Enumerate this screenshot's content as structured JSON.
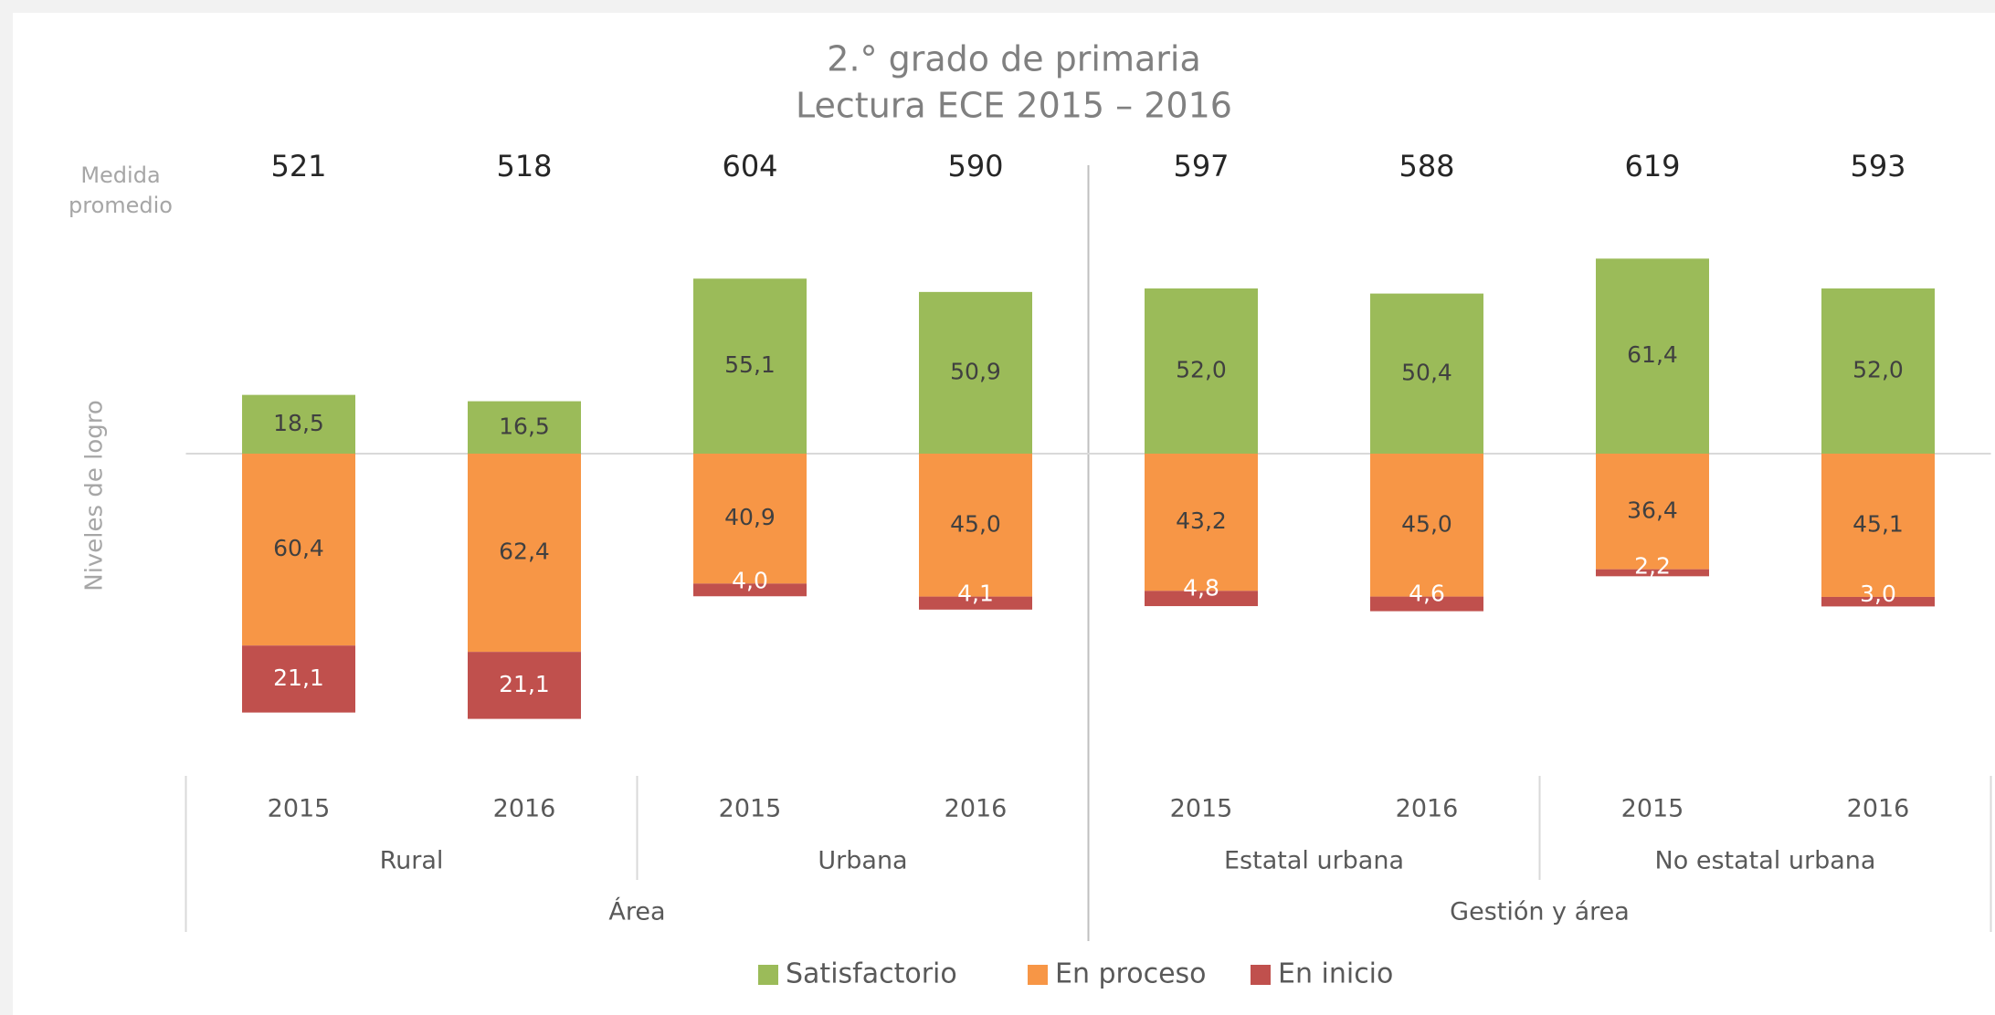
{
  "chart_data": {
    "type": "diverging_stacked_bar",
    "title": "2.° grado de primaria",
    "subtitle": "Lectura ECE 2015 – 2016",
    "mean_label": "Medida promedio",
    "y_label": "Niveles de logro",
    "groups": [
      {
        "name": "Área",
        "subgroups": [
          {
            "name": "Rural",
            "categories": [
              "2015",
              "2016"
            ]
          },
          {
            "name": "Urbana",
            "categories": [
              "2015",
              "2016"
            ]
          }
        ]
      },
      {
        "name": "Gestión y área",
        "subgroups": [
          {
            "name": "Estatal urbana",
            "categories": [
              "2015",
              "2016"
            ]
          },
          {
            "name": "No estatal urbana",
            "categories": [
              "2015",
              "2016"
            ]
          }
        ]
      }
    ],
    "means": [
      521,
      518,
      604,
      590,
      597,
      588,
      619,
      593
    ],
    "series": [
      {
        "name": "Satisfactorio",
        "color": "#9bbb59",
        "side": "above",
        "values": [
          18.5,
          16.5,
          55.1,
          50.9,
          52.0,
          50.4,
          61.4,
          52.0
        ],
        "value_labels": [
          "18,5",
          "16,5",
          "55,1",
          "50,9",
          "52,0",
          "50,4",
          "61,4",
          "52,0"
        ]
      },
      {
        "name": "En proceso",
        "color": "#f79646",
        "side": "below",
        "values": [
          60.4,
          62.4,
          40.9,
          45.0,
          43.2,
          45.0,
          36.4,
          45.1
        ],
        "value_labels": [
          "60,4",
          "62,4",
          "40,9",
          "45,0",
          "43,2",
          "45,0",
          "36,4",
          "45,1"
        ]
      },
      {
        "name": "En inicio",
        "color": "#c0504d",
        "side": "below",
        "values": [
          21.1,
          21.1,
          4.0,
          4.1,
          4.8,
          4.6,
          2.2,
          3.0
        ],
        "value_labels": [
          "21,1",
          "21,1",
          "4,0",
          "4,1",
          "4,8",
          "4,6",
          "2,2",
          "3,0"
        ]
      }
    ],
    "legend": "bottom"
  }
}
